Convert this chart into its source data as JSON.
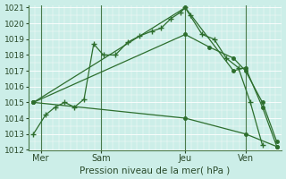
{
  "xlabel": "Pression niveau de la mer( hPa )",
  "bg_color": "#cceee8",
  "grid_color": "#ffffff",
  "line_color": "#2d6e2d",
  "ylim": [
    1012,
    1021
  ],
  "yticks": [
    1012,
    1013,
    1014,
    1015,
    1016,
    1017,
    1018,
    1019,
    1020,
    1021
  ],
  "xlim": [
    0,
    10.5
  ],
  "xtick_positions": [
    0.5,
    3.0,
    6.5,
    9.0
  ],
  "xtick_labels": [
    "Mer",
    "Sam",
    "Jeu",
    "Ven"
  ],
  "vlines": [
    0.5,
    3.0,
    6.5,
    9.0
  ],
  "series": [
    {
      "marker": "+",
      "x": [
        0.2,
        0.7,
        1.1,
        1.5,
        1.9,
        2.3,
        2.7,
        3.1,
        3.6,
        4.1,
        4.6,
        5.1,
        5.5,
        5.9,
        6.3,
        6.5,
        6.7,
        7.2,
        7.7,
        8.2,
        8.7,
        9.2,
        9.7
      ],
      "y": [
        1013.0,
        1014.2,
        1014.7,
        1015.0,
        1014.7,
        1015.2,
        1018.7,
        1018.0,
        1018.0,
        1018.8,
        1019.2,
        1019.5,
        1019.7,
        1020.3,
        1020.7,
        1021.0,
        1020.5,
        1019.3,
        1019.0,
        1017.8,
        1017.2,
        1015.0,
        1012.3
      ]
    },
    {
      "marker": "o",
      "x": [
        0.2,
        6.5,
        8.5,
        9.0,
        9.7,
        10.3
      ],
      "y": [
        1015.0,
        1021.0,
        1017.0,
        1017.2,
        1014.7,
        1012.2
      ]
    },
    {
      "marker": "o",
      "x": [
        0.2,
        6.5,
        7.5,
        8.5,
        9.0,
        9.7,
        10.3
      ],
      "y": [
        1015.0,
        1019.3,
        1018.5,
        1017.8,
        1017.0,
        1015.0,
        1012.5
      ]
    },
    {
      "marker": "o",
      "x": [
        0.2,
        6.5,
        9.0,
        10.3
      ],
      "y": [
        1015.0,
        1014.0,
        1013.0,
        1012.2
      ]
    }
  ],
  "figsize": [
    3.2,
    2.0
  ],
  "dpi": 100
}
